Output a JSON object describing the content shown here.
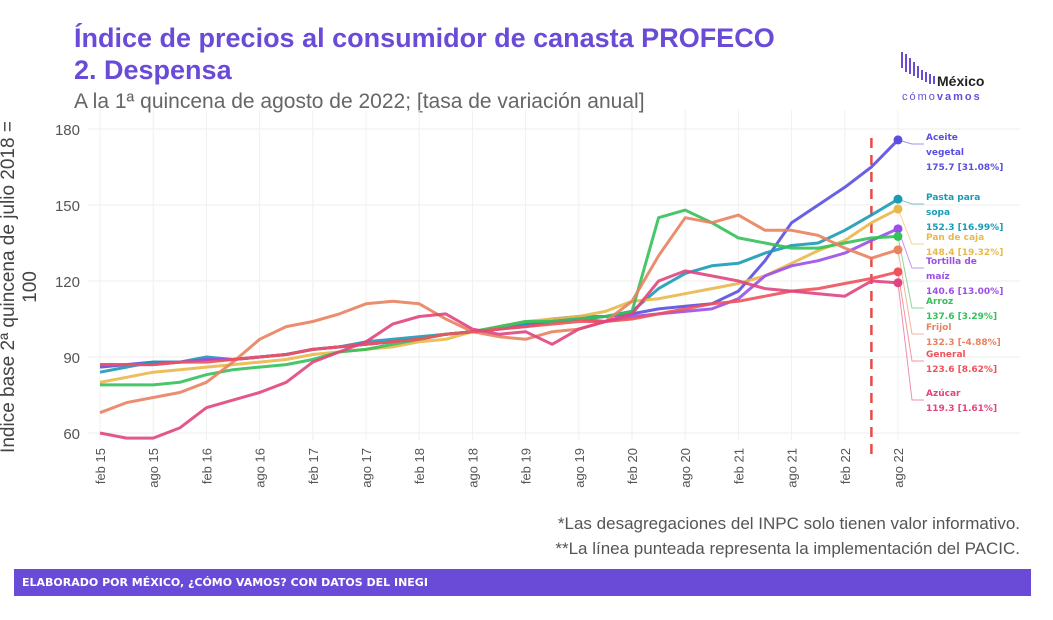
{
  "header": {
    "title_line1": "Índice de precios al consumidor de canasta PROFECO",
    "title_line2": "2. Despensa",
    "subtitle": "A la 1ª quincena de agosto de 2022; [tasa de variación anual]"
  },
  "logo": {
    "text_top": "México",
    "text_bottom_light": "cómo",
    "text_bottom_bold": "vamos"
  },
  "notes": [
    "*Las desagregaciones del INPC solo tienen valor informativo.",
    "**La línea punteada representa la implementación del PACIC."
  ],
  "banner": "ELABORADO POR MÉXICO, ¿CÓMO VAMOS? CON DATOS DEL INEGI",
  "chart_data": {
    "type": "line",
    "ylabel": "Índice base 2ª quincena de julio 2018 = 100",
    "ylim": [
      55,
      182
    ],
    "yticks": [
      60,
      90,
      120,
      150,
      180
    ],
    "grid": true,
    "x": [
      "feb 15",
      "may 15",
      "ago 15",
      "nov 15",
      "feb 16",
      "may 16",
      "ago 16",
      "nov 16",
      "feb 17",
      "may 17",
      "ago 17",
      "nov 17",
      "feb 18",
      "may 18",
      "ago 18",
      "nov 18",
      "feb 19",
      "may 19",
      "ago 19",
      "nov 19",
      "feb 20",
      "may 20",
      "ago 20",
      "nov 20",
      "feb 21",
      "may 21",
      "ago 21",
      "nov 21",
      "feb 22",
      "may 22",
      "ago 22"
    ],
    "xticks": [
      "feb 15",
      "ago 15",
      "feb 16",
      "ago 16",
      "feb 17",
      "ago 17",
      "feb 18",
      "ago 18",
      "feb 19",
      "ago 19",
      "feb 20",
      "ago 20",
      "feb 21",
      "ago 21",
      "feb 22",
      "ago 22"
    ],
    "vline": {
      "x": "may 22",
      "color": "#e84a4a",
      "style": "dashed"
    },
    "series": [
      {
        "name": "Aceite vegetal",
        "label": "175.7 [31.08%]",
        "color": "#5a4fe0",
        "values": [
          86,
          87,
          88,
          88,
          89,
          89,
          90,
          91,
          93,
          94,
          95,
          96,
          97,
          99,
          100,
          101,
          103,
          104,
          105,
          106,
          107,
          109,
          110,
          111,
          116,
          128,
          143,
          150,
          157,
          165,
          175.7
        ]
      },
      {
        "name": "Pasta para sopa",
        "label": "152.3 [16.99%]",
        "color": "#1a9bb5",
        "values": [
          84,
          86,
          88,
          88,
          90,
          89,
          90,
          91,
          93,
          94,
          96,
          97,
          98,
          99,
          100,
          101,
          103,
          105,
          106,
          106,
          108,
          117,
          123,
          126,
          127,
          131,
          134,
          135,
          140,
          146,
          152.3
        ]
      },
      {
        "name": "Pan de caja",
        "label": "148.4 [19.32%]",
        "color": "#e8b84a",
        "values": [
          80,
          82,
          84,
          85,
          86,
          87,
          88,
          89,
          91,
          92,
          93,
          94,
          96,
          97,
          100,
          102,
          104,
          105,
          106,
          108,
          112,
          113,
          115,
          117,
          119,
          122,
          127,
          132,
          136,
          143,
          148.4
        ]
      },
      {
        "name": "Tortilla de maíz",
        "label": "140.6 [13.00%]",
        "color": "#9b4fe8",
        "values": [
          87,
          87,
          87,
          88,
          89,
          89,
          90,
          91,
          93,
          94,
          95,
          96,
          97,
          99,
          100,
          101,
          102,
          104,
          105,
          104,
          106,
          107,
          108,
          109,
          113,
          122,
          126,
          128,
          131,
          136,
          140.6
        ]
      },
      {
        "name": "Arroz",
        "label": "137.6 [3.29%]",
        "color": "#34c05a",
        "values": [
          79,
          79,
          79,
          80,
          83,
          85,
          86,
          87,
          89,
          92,
          93,
          95,
          97,
          99,
          100,
          102,
          104,
          104,
          105,
          106,
          108,
          145,
          148,
          143,
          137,
          135,
          133,
          133,
          135,
          137,
          137.6
        ]
      },
      {
        "name": "Frijol",
        "label": "132.3 [-4.88%]",
        "color": "#e8825f",
        "values": [
          68,
          72,
          74,
          76,
          80,
          88,
          97,
          102,
          104,
          107,
          111,
          112,
          111,
          105,
          100,
          98,
          97,
          100,
          101,
          104,
          112,
          130,
          145,
          143,
          146,
          140,
          140,
          138,
          133,
          129,
          132.3
        ]
      },
      {
        "name": "General",
        "label": "123.6 [8.62%]",
        "color": "#f0525a",
        "values": [
          87,
          87,
          87,
          88,
          88,
          89,
          90,
          91,
          93,
          94,
          95,
          96,
          97,
          99,
          100,
          101,
          102,
          103,
          104,
          104,
          105,
          107,
          109,
          111,
          112,
          114,
          116,
          117,
          119,
          121,
          123.6
        ]
      },
      {
        "name": "Azúcar",
        "label": "119.3 [1.61%]",
        "color": "#e0457f",
        "values": [
          60,
          58,
          58,
          62,
          70,
          73,
          76,
          80,
          88,
          92,
          96,
          103,
          106,
          107,
          101,
          99,
          100,
          95,
          101,
          104,
          107,
          120,
          124,
          122,
          120,
          117,
          116,
          115,
          114,
          120,
          119.3
        ]
      }
    ]
  }
}
